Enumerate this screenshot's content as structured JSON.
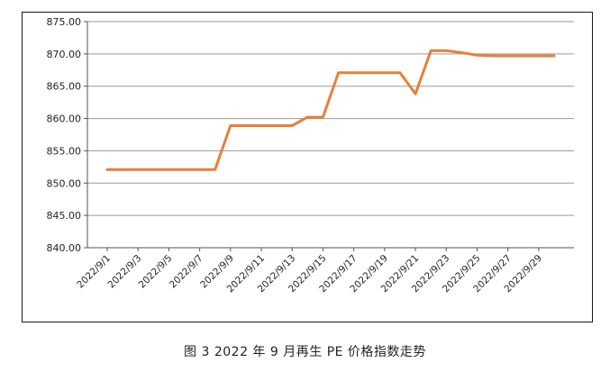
{
  "caption": "图 3  2022 年 9 月再生 PE 价格指数走势",
  "colors": {
    "line": "#E4813A",
    "grid": "#9a9a9a",
    "axis": "#555555"
  },
  "chart_data": {
    "type": "line",
    "title": "",
    "xlabel": "",
    "ylabel": "",
    "ylim": [
      840,
      875
    ],
    "y_ticks": [
      "875.00",
      "870.00",
      "865.00",
      "860.00",
      "855.00",
      "850.00",
      "845.00",
      "840.00"
    ],
    "x_tick_labels": [
      "2022/9/1",
      "2022/9/3",
      "2022/9/5",
      "2022/9/7",
      "2022/9/9",
      "2022/9/11",
      "2022/9/13",
      "2022/9/15",
      "2022/9/17",
      "2022/9/19",
      "2022/9/21",
      "2022/9/23",
      "2022/9/25",
      "2022/9/27",
      "2022/9/29"
    ],
    "grid": "horizontal",
    "x": [
      "2022/9/1",
      "2022/9/2",
      "2022/9/3",
      "2022/9/4",
      "2022/9/5",
      "2022/9/6",
      "2022/9/7",
      "2022/9/8",
      "2022/9/9",
      "2022/9/10",
      "2022/9/11",
      "2022/9/12",
      "2022/9/13",
      "2022/9/14",
      "2022/9/15",
      "2022/9/16",
      "2022/9/17",
      "2022/9/18",
      "2022/9/19",
      "2022/9/20",
      "2022/9/21",
      "2022/9/22",
      "2022/9/23",
      "2022/9/24",
      "2022/9/25",
      "2022/9/26",
      "2022/9/27",
      "2022/9/28",
      "2022/9/29",
      "2022/9/30"
    ],
    "series": [
      {
        "values": [
          852.1,
          852.1,
          852.1,
          852.1,
          852.1,
          852.1,
          852.1,
          852.1,
          858.9,
          858.9,
          858.9,
          858.9,
          858.9,
          860.2,
          860.2,
          867.1,
          867.1,
          867.1,
          867.1,
          867.1,
          863.8,
          870.5,
          870.5,
          870.2,
          869.8,
          869.7,
          869.7,
          869.7,
          869.7,
          869.7
        ]
      }
    ]
  }
}
